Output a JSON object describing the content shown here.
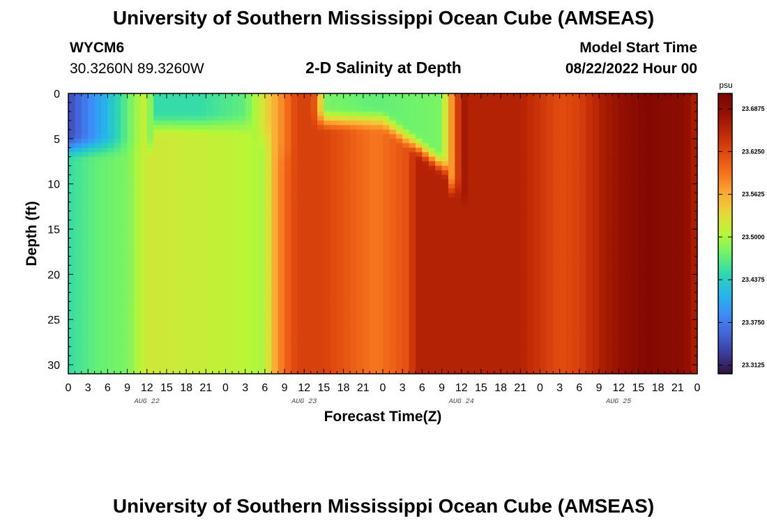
{
  "header": {
    "title": "University of Southern Mississippi Ocean Cube (AMSEAS)",
    "station_id": "WYCM6",
    "coords": "30.3260N  89.3260W",
    "subtitle": "2-D Salinity at Depth",
    "model_start_label": "Model Start Time",
    "model_start_value": "08/22/2022 Hour 00"
  },
  "footer": {
    "title": "University of Southern Mississippi Ocean Cube (AMSEAS)"
  },
  "chart_data": {
    "type": "heatmap",
    "title": "2-D Salinity at Depth",
    "xlabel": "Forecast Time(Z)",
    "ylabel": "Depth (ft)",
    "x_unit": "hours since 08/22/2022 00Z",
    "xlim": [
      0,
      96
    ],
    "ylim": [
      0,
      31
    ],
    "x_tick_labels": [
      "0",
      "3",
      "6",
      "9",
      "12",
      "15",
      "18",
      "21",
      "0",
      "3",
      "6",
      "9",
      "12",
      "15",
      "18",
      "21",
      "0",
      "3",
      "6",
      "9",
      "12",
      "15",
      "18",
      "21",
      "0",
      "3",
      "6",
      "9",
      "12",
      "15",
      "18",
      "21",
      "0"
    ],
    "y_ticks": [
      0,
      5,
      10,
      15,
      20,
      25,
      30
    ],
    "day_labels": [
      "AUG 22",
      "AUG 23",
      "AUG 24",
      "AUG 25"
    ],
    "colorbar": {
      "unit": "psu",
      "range": [
        23.3,
        23.71
      ],
      "tick_values": [
        23.3125,
        23.375,
        23.4375,
        23.5,
        23.5625,
        23.625,
        23.6875
      ],
      "tick_labels": [
        "23.3125",
        "23.3750",
        "23.4375",
        "23.5000",
        "23.5625",
        "23.6250",
        "23.6875"
      ],
      "colors": [
        "#30123b",
        "#3a3c9b",
        "#4364d8",
        "#3d8ef8",
        "#25b8e6",
        "#2dd8b0",
        "#6ff36b",
        "#b8f736",
        "#e7d838",
        "#fcab33",
        "#f6731d",
        "#e04a0e",
        "#bf2906",
        "#951102",
        "#7a0403"
      ]
    },
    "surface_profile_psu": [
      [
        0,
        23.34
      ],
      [
        6,
        23.42
      ],
      [
        12,
        23.52
      ],
      [
        13,
        23.45
      ],
      [
        20,
        23.45
      ],
      [
        27,
        23.47
      ],
      [
        31,
        23.55
      ],
      [
        35,
        23.63
      ],
      [
        37,
        23.63
      ],
      [
        38,
        23.6
      ],
      [
        39,
        23.48
      ],
      [
        47,
        23.47
      ],
      [
        57,
        23.48
      ],
      [
        58,
        23.55
      ],
      [
        59,
        23.6
      ],
      [
        60,
        23.67
      ],
      [
        72,
        23.66
      ],
      [
        77,
        23.62
      ],
      [
        82,
        23.64
      ],
      [
        86,
        23.66
      ],
      [
        89,
        23.67
      ],
      [
        92,
        23.68
      ],
      [
        96,
        23.66
      ]
    ],
    "bottom_profile_psu": [
      [
        0,
        23.45
      ],
      [
        4,
        23.47
      ],
      [
        9,
        23.48
      ],
      [
        12,
        23.52
      ],
      [
        25,
        23.51
      ],
      [
        30,
        23.5
      ],
      [
        31,
        23.55
      ],
      [
        33,
        23.6
      ],
      [
        35,
        23.63
      ],
      [
        39,
        23.63
      ],
      [
        47,
        23.59
      ],
      [
        52,
        23.62
      ],
      [
        53,
        23.66
      ],
      [
        60,
        23.66
      ],
      [
        69,
        23.66
      ],
      [
        72,
        23.64
      ],
      [
        75,
        23.62
      ],
      [
        78,
        23.63
      ],
      [
        82,
        23.67
      ],
      [
        88,
        23.7
      ],
      [
        94,
        23.69
      ],
      [
        96,
        23.66
      ]
    ]
  }
}
